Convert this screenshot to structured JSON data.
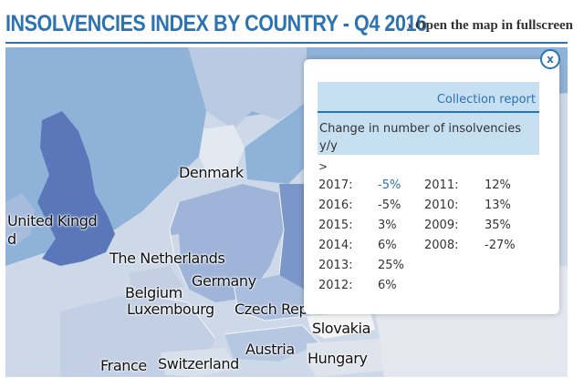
{
  "header": {
    "title": "INSOLVENCIES INDEX BY COUNTRY - Q4 2016",
    "open_link": "› Open the map in fullscreen"
  },
  "map": {
    "countries": [
      {
        "label": "Denmark"
      },
      {
        "label": "United Kingd"
      },
      {
        "label": "d"
      },
      {
        "label": "The Netherlands"
      },
      {
        "label": "Germany"
      },
      {
        "label": "Belgium"
      },
      {
        "label": "Luxembourg"
      },
      {
        "label": "Czech Repu"
      },
      {
        "label": "Slovakia"
      },
      {
        "label": "Austria"
      },
      {
        "label": "Hungary"
      },
      {
        "label": "France"
      },
      {
        "label": "Switzerland"
      }
    ]
  },
  "popup": {
    "close_label": "x",
    "collection_link": "Collection report",
    "heading": "Change in number of insolvencies y/y",
    "arrow": ">",
    "left_column": [
      {
        "year": "2017:",
        "value": "-5%"
      },
      {
        "year": "2016:",
        "value": "-5%"
      },
      {
        "year": "2015:",
        "value": "3%"
      },
      {
        "year": "2014:",
        "value": "6%"
      },
      {
        "year": "2013:",
        "value": "25%"
      },
      {
        "year": "2012:",
        "value": "6%"
      }
    ],
    "right_column": [
      {
        "year": "2011:",
        "value": "12%"
      },
      {
        "year": "2010:",
        "value": "13%"
      },
      {
        "year": "2009:",
        "value": "35%"
      },
      {
        "year": "2008:",
        "value": "-27%"
      }
    ]
  },
  "colors": {
    "brand": "#2b73b3",
    "sea": "#8fb2d8",
    "land_light": "#d4dee9",
    "land_mid": "#a7bcdc",
    "uk": "#5a78b9",
    "popup_header_bg": "#c6dff1",
    "highlight_value": "#2b73b3"
  }
}
